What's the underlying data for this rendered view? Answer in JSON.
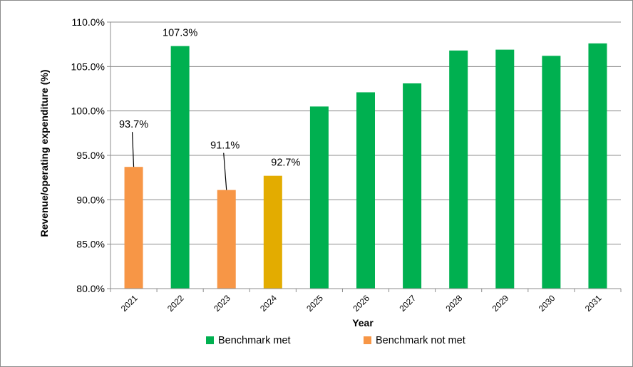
{
  "chart_data": {
    "type": "bar",
    "categories": [
      "2021",
      "2022",
      "2023",
      "2024",
      "2025",
      "2026",
      "2027",
      "2028",
      "2029",
      "2030",
      "2031"
    ],
    "values": [
      93.7,
      107.3,
      91.1,
      92.7,
      100.5,
      102.1,
      103.1,
      106.8,
      106.9,
      106.2,
      107.6
    ],
    "bar_colors": [
      "#f79646",
      "#00b050",
      "#f79646",
      "#e3ac00",
      "#00b050",
      "#00b050",
      "#00b050",
      "#00b050",
      "#00b050",
      "#00b050",
      "#00b050"
    ],
    "data_labels": [
      {
        "index": 0,
        "text": "93.7%"
      },
      {
        "index": 1,
        "text": "107.3%"
      },
      {
        "index": 2,
        "text": "91.1%"
      },
      {
        "index": 3,
        "text": "92.7%"
      }
    ],
    "ylim": [
      80,
      110
    ],
    "yticks": [
      80,
      85,
      90,
      95,
      100,
      105,
      110
    ],
    "ytick_labels": [
      "80.0%",
      "85.0%",
      "90.0%",
      "95.0%",
      "100.0%",
      "105.0%",
      "110.0%"
    ],
    "xlabel": "Year",
    "ylabel": "Revenue/operating expenditure (%)",
    "grid": true,
    "legend_position": "bottom",
    "legend": [
      {
        "name": "Benchmark met",
        "color": "#00b050"
      },
      {
        "name": "Benchmark not met",
        "color": "#f79646"
      }
    ]
  }
}
